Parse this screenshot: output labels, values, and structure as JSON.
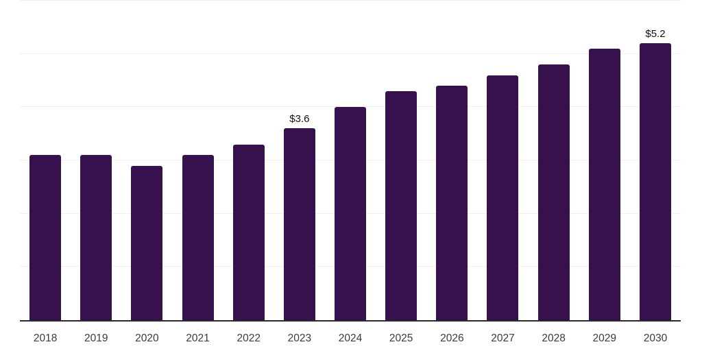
{
  "chart_data": {
    "type": "bar",
    "categories": [
      "2018",
      "2019",
      "2020",
      "2021",
      "2022",
      "2023",
      "2024",
      "2025",
      "2026",
      "2027",
      "2028",
      "2029",
      "2030"
    ],
    "values": [
      3.1,
      3.1,
      2.9,
      3.1,
      3.3,
      3.6,
      4.0,
      4.3,
      4.4,
      4.6,
      4.8,
      5.1,
      5.2
    ],
    "data_labels": [
      null,
      null,
      null,
      null,
      null,
      "$3.6",
      null,
      null,
      null,
      null,
      null,
      null,
      "$5.2"
    ],
    "title": "",
    "xlabel": "",
    "ylabel": "",
    "ylim": [
      0,
      6
    ],
    "grid": true,
    "gridline_values": [
      1,
      2,
      3,
      4,
      5,
      6
    ],
    "legend_position": "none",
    "colors": {
      "bar": "#37114e",
      "gridline": "#f0f0f0",
      "axis_line": "#2a2a2a",
      "tick_label": "#3b3b3b",
      "value_label": "#111111",
      "background": "#ffffff"
    }
  }
}
